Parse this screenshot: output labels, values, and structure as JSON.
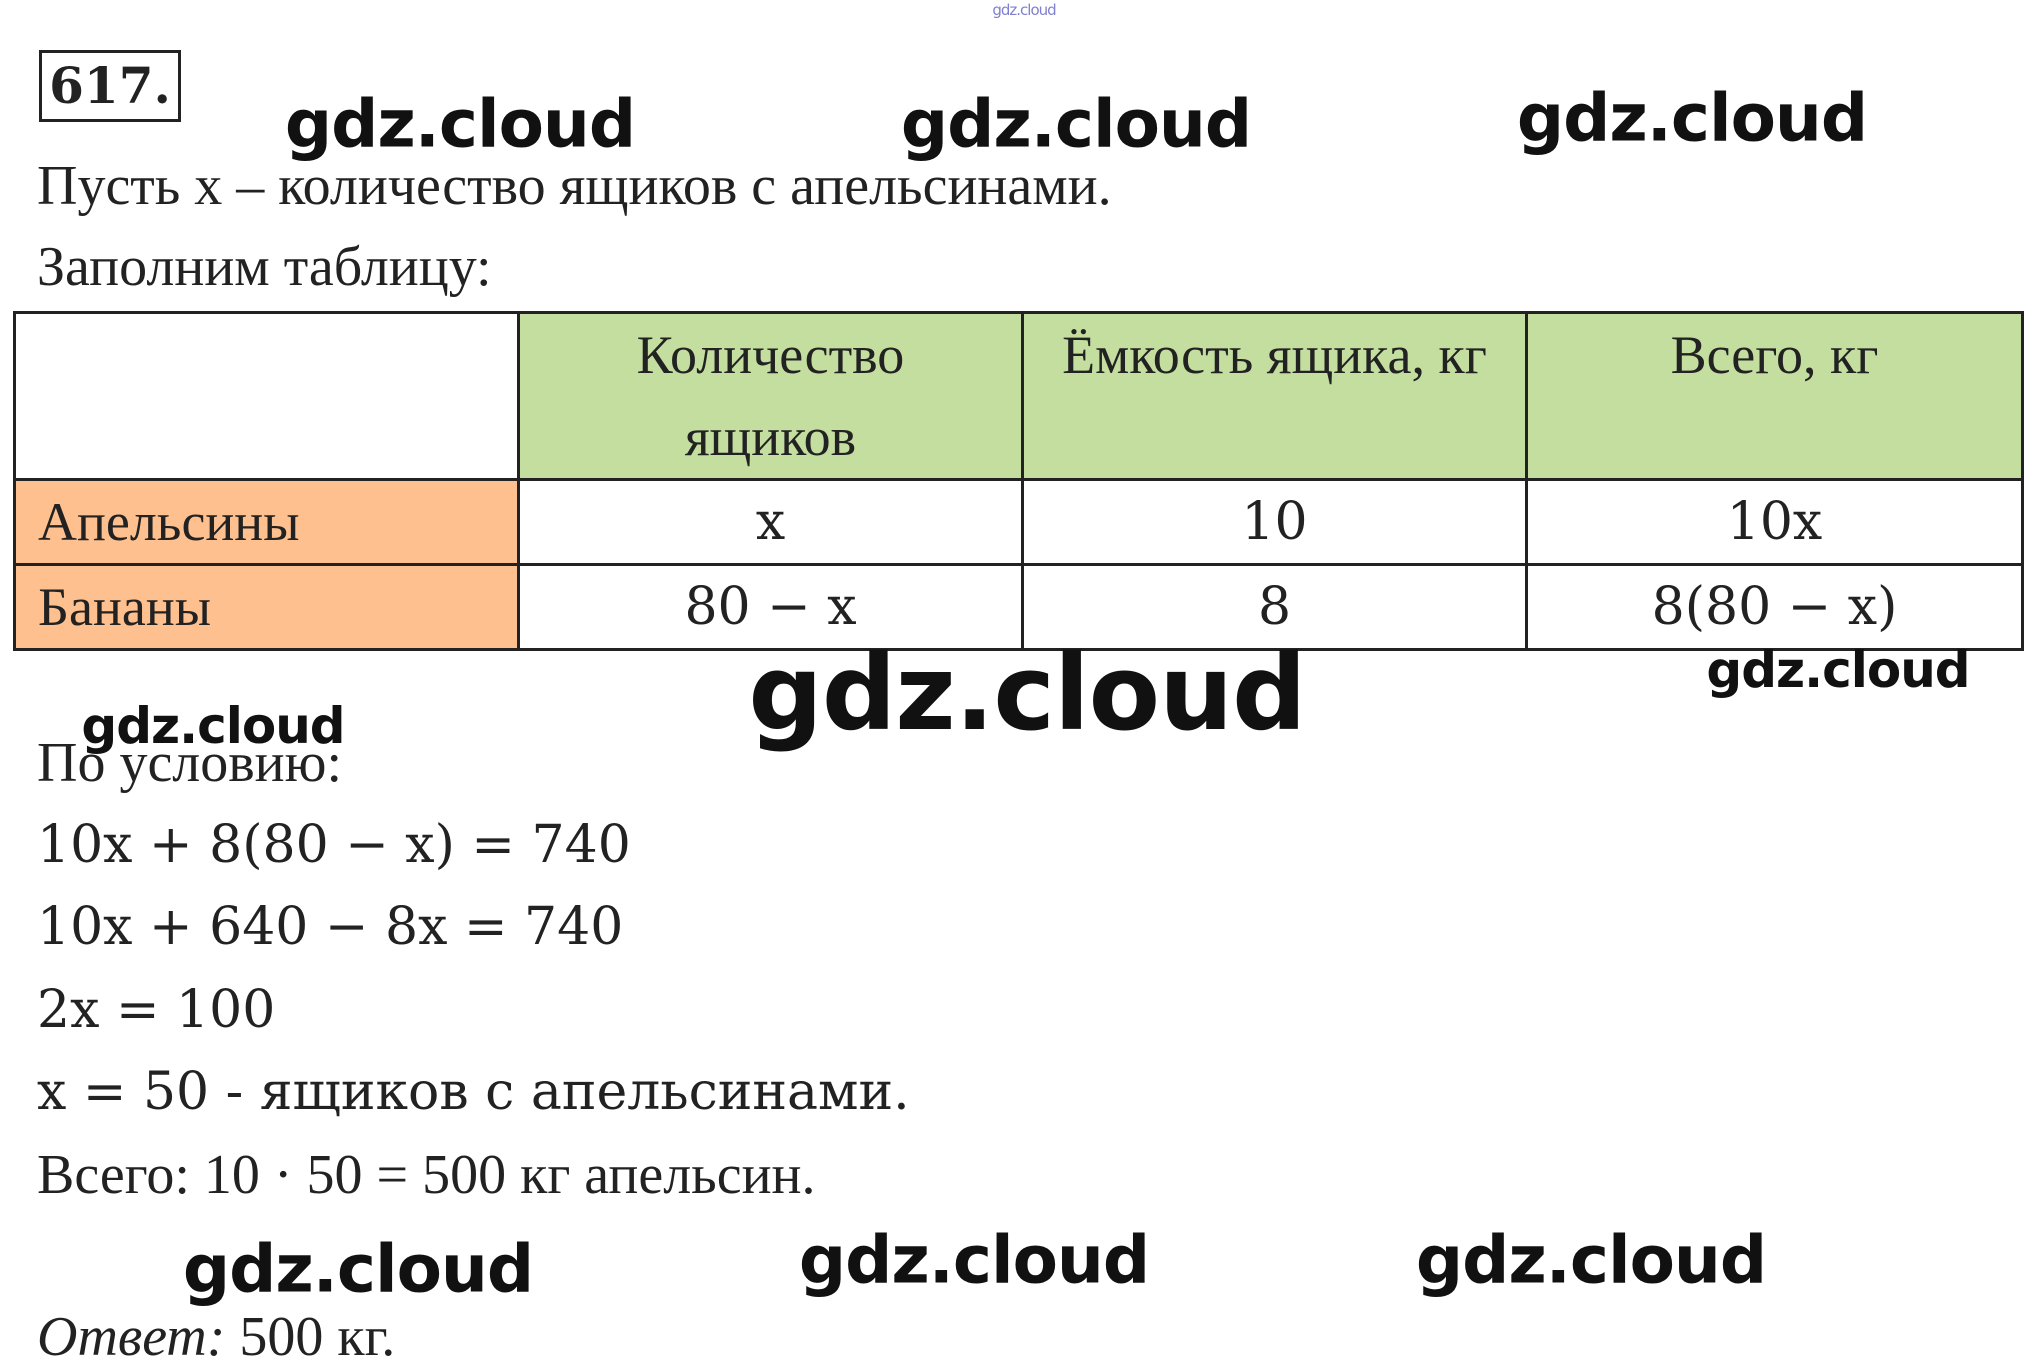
{
  "problem_number": "617.",
  "intro": [
    "Пусть x – количество ящиков с апельсинами.",
    "Заполним таблицу:"
  ],
  "table": {
    "header": [
      "Количество ящиков",
      "Ёмкость ящика, кг",
      "Всего, кг"
    ],
    "rows": [
      [
        "Апельсины",
        "x",
        "10",
        "10x"
      ],
      [
        "Бананы",
        "80 − x",
        "8",
        "8(80 − x)"
      ]
    ]
  },
  "condition": "По условию:",
  "equations": [
    "10x + 8(80 − x) = 740",
    "10x + 640 − 8x = 740",
    "2x = 100",
    "x = 50 - ящиков с апельсинами.",
    "Всего: 10 · 50 = 500 кг апельсин."
  ],
  "answer": {
    "label": "Ответ:",
    "text": "500 кг."
  },
  "watermarks": [
    "gdz.cloud",
    "gdz.cloud",
    "gdz.cloud",
    "gdz.cloud",
    "gdz.cloud",
    "gdz.cloud",
    "gdz.cloud",
    "gdz.cloud",
    "gdz.cloud",
    "gdz.cloud"
  ]
}
